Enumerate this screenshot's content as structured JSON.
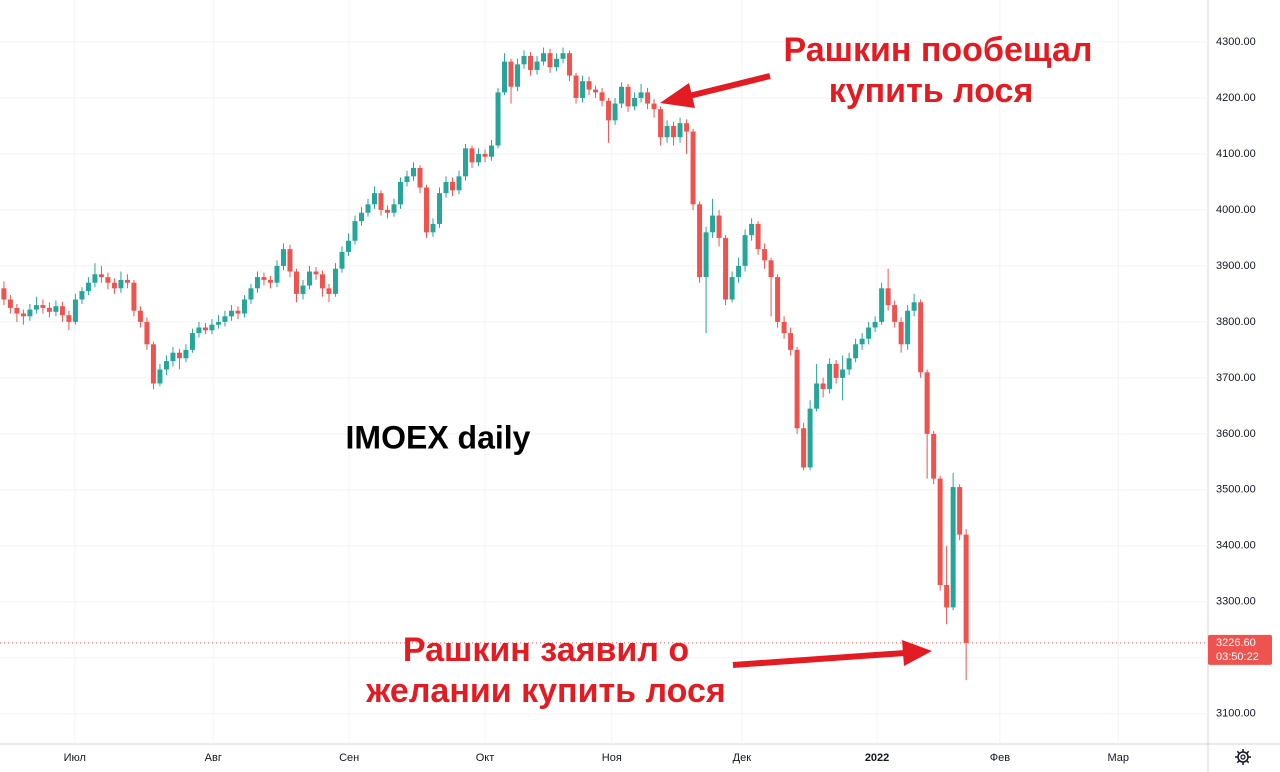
{
  "chart_data": {
    "type": "candlestick",
    "watermark": "IMOEX daily",
    "up_color": "#26a69a",
    "down_color": "#ef5350",
    "xlim": [
      -0.6,
      185.2
    ],
    "xticks": [
      {
        "value": 10.9,
        "label": "Июл"
      },
      {
        "value": 32.2,
        "label": "Авг"
      },
      {
        "value": 53.1,
        "label": "Сен"
      },
      {
        "value": 74,
        "label": "Окт"
      },
      {
        "value": 93.5,
        "label": "Ноя"
      },
      {
        "value": 113.5,
        "label": "Дек"
      },
      {
        "value": 134.3,
        "label": "2022"
      },
      {
        "value": 153.2,
        "label": "Фев"
      },
      {
        "value": 171.4,
        "label": "Мар"
      }
    ],
    "ylim": [
      3046,
      4375
    ],
    "yticks": [
      {
        "value": 3100,
        "label": "3100.00"
      },
      {
        "value": 3200,
        "label": "3200.00"
      },
      {
        "value": 3300,
        "label": "3300.00"
      },
      {
        "value": 3400,
        "label": "3400.00"
      },
      {
        "value": 3500,
        "label": "3500.00"
      },
      {
        "value": 3600,
        "label": "3600.00"
      },
      {
        "value": 3700,
        "label": "3700.00"
      },
      {
        "value": 3800,
        "label": "3800.00"
      },
      {
        "value": 3900,
        "label": "3900.00"
      },
      {
        "value": 4000,
        "label": "4000.00"
      },
      {
        "value": 4100,
        "label": "4100.00"
      },
      {
        "value": 4200,
        "label": "4200.00"
      },
      {
        "value": 4300,
        "label": "4300.00"
      }
    ],
    "grid": true,
    "open": [
      3860,
      3840,
      3825,
      3815,
      3810,
      3822,
      3830,
      3825,
      3818,
      3828,
      3812,
      3800,
      3840,
      3855,
      3870,
      3885,
      3880,
      3870,
      3860,
      3875,
      3870,
      3820,
      3800,
      3760,
      3690,
      3715,
      3730,
      3745,
      3735,
      3750,
      3780,
      3790,
      3785,
      3795,
      3800,
      3810,
      3820,
      3815,
      3840,
      3860,
      3880,
      3875,
      3870,
      3900,
      3930,
      3890,
      3850,
      3865,
      3890,
      3885,
      3860,
      3850,
      3895,
      3925,
      3945,
      3980,
      3995,
      4010,
      4030,
      4000,
      3995,
      4010,
      4050,
      4060,
      4075,
      4040,
      3960,
      3975,
      4030,
      4050,
      4035,
      4060,
      4110,
      4085,
      4100,
      4095,
      4115,
      4210,
      4265,
      4220,
      4260,
      4275,
      4250,
      4265,
      4280,
      4255,
      4270,
      4280,
      4240,
      4200,
      4230,
      4215,
      4210,
      4195,
      4160,
      4190,
      4220,
      4185,
      4200,
      4210,
      4190,
      4180,
      4130,
      4150,
      4130,
      4155,
      4140,
      4010,
      3880,
      3960,
      3990,
      3950,
      3840,
      3880,
      3900,
      3955,
      3975,
      3930,
      3910,
      3880,
      3800,
      3780,
      3750,
      3610,
      3540,
      3645,
      3690,
      3680,
      3725,
      3700,
      3715,
      3735,
      3760,
      3770,
      3790,
      3800,
      3860,
      3830,
      3800,
      3760,
      3820,
      3835,
      3710,
      3600,
      3520,
      3330,
      3290,
      3505,
      3420
    ],
    "high": [
      3872,
      3848,
      3832,
      3822,
      3832,
      3845,
      3840,
      3835,
      3838,
      3836,
      3820,
      3850,
      3862,
      3880,
      3905,
      3900,
      3888,
      3878,
      3890,
      3885,
      3875,
      3828,
      3808,
      3765,
      3725,
      3740,
      3755,
      3752,
      3760,
      3788,
      3800,
      3798,
      3805,
      3812,
      3820,
      3830,
      3828,
      3848,
      3868,
      3890,
      3888,
      3882,
      3910,
      3940,
      3938,
      3895,
      3875,
      3900,
      3898,
      3892,
      3868,
      3905,
      3935,
      3958,
      3990,
      4005,
      4020,
      4042,
      4035,
      4008,
      4020,
      4058,
      4070,
      4085,
      4080,
      4045,
      3985,
      4040,
      4060,
      4058,
      4070,
      4118,
      4115,
      4110,
      4108,
      4125,
      4218,
      4280,
      4270,
      4270,
      4285,
      4282,
      4275,
      4290,
      4288,
      4280,
      4290,
      4285,
      4245,
      4240,
      4238,
      4222,
      4218,
      4200,
      4200,
      4228,
      4225,
      4210,
      4225,
      4218,
      4198,
      4185,
      4160,
      4158,
      4165,
      4162,
      4145,
      4015,
      3970,
      4020,
      4000,
      3955,
      3890,
      3915,
      3965,
      3985,
      3980,
      3940,
      3915,
      3885,
      3810,
      3790,
      3755,
      3620,
      3660,
      3725,
      3700,
      3735,
      3732,
      3740,
      3745,
      3770,
      3780,
      3800,
      3810,
      3870,
      3895,
      3838,
      3808,
      3830,
      3850,
      3840,
      3715,
      3605,
      3525,
      3400,
      3530,
      3510,
      3430
    ],
    "low": [
      3830,
      3815,
      3800,
      3795,
      3802,
      3815,
      3815,
      3808,
      3810,
      3800,
      3785,
      3795,
      3832,
      3848,
      3862,
      3870,
      3858,
      3850,
      3852,
      3860,
      3810,
      3790,
      3750,
      3680,
      3685,
      3705,
      3720,
      3715,
      3728,
      3745,
      3772,
      3778,
      3778,
      3788,
      3792,
      3802,
      3805,
      3808,
      3832,
      3852,
      3865,
      3860,
      3862,
      3892,
      3880,
      3835,
      3840,
      3858,
      3875,
      3845,
      3835,
      3845,
      3888,
      3918,
      3938,
      3972,
      3988,
      4002,
      3990,
      3985,
      3988,
      4002,
      4042,
      4052,
      4030,
      3950,
      3952,
      3968,
      4022,
      4025,
      4028,
      4052,
      4075,
      4078,
      4085,
      4088,
      4110,
      4205,
      4190,
      4212,
      4252,
      4240,
      4242,
      4258,
      4245,
      4248,
      4262,
      4230,
      4190,
      4192,
      4205,
      4200,
      4185,
      4120,
      4152,
      4182,
      4175,
      4178,
      4192,
      4180,
      4165,
      4115,
      4120,
      4115,
      4120,
      4100,
      4000,
      3870,
      3780,
      3950,
      3935,
      3830,
      3835,
      3870,
      3890,
      3945,
      3920,
      3895,
      3810,
      3790,
      3770,
      3740,
      3600,
      3535,
      3535,
      3640,
      3665,
      3672,
      3690,
      3660,
      3705,
      3728,
      3750,
      3760,
      3782,
      3795,
      3820,
      3790,
      3745,
      3750,
      3810,
      3700,
      3520,
      3510,
      3320,
      3260,
      3285,
      3410,
      3160
    ],
    "close": [
      3840,
      3825,
      3815,
      3810,
      3822,
      3830,
      3825,
      3818,
      3828,
      3812,
      3800,
      3840,
      3855,
      3870,
      3885,
      3880,
      3870,
      3860,
      3875,
      3870,
      3820,
      3800,
      3760,
      3690,
      3715,
      3730,
      3745,
      3735,
      3750,
      3780,
      3790,
      3785,
      3795,
      3800,
      3810,
      3820,
      3815,
      3840,
      3860,
      3880,
      3875,
      3870,
      3900,
      3930,
      3890,
      3850,
      3865,
      3890,
      3885,
      3860,
      3850,
      3895,
      3925,
      3945,
      3980,
      3995,
      4010,
      4030,
      4000,
      3995,
      4010,
      4050,
      4060,
      4075,
      4040,
      3960,
      3975,
      4030,
      4050,
      4035,
      4060,
      4110,
      4085,
      4100,
      4095,
      4115,
      4210,
      4265,
      4220,
      4260,
      4275,
      4250,
      4265,
      4280,
      4255,
      4270,
      4280,
      4240,
      4200,
      4230,
      4215,
      4210,
      4195,
      4160,
      4190,
      4220,
      4185,
      4200,
      4210,
      4190,
      4180,
      4130,
      4150,
      4130,
      4155,
      4140,
      4010,
      3880,
      3960,
      3990,
      3950,
      3840,
      3880,
      3900,
      3955,
      3975,
      3930,
      3910,
      3880,
      3800,
      3780,
      3750,
      3610,
      3540,
      3645,
      3690,
      3680,
      3725,
      3700,
      3715,
      3735,
      3760,
      3770,
      3790,
      3800,
      3860,
      3830,
      3800,
      3760,
      3820,
      3835,
      3710,
      3600,
      3520,
      3330,
      3290,
      3505,
      3420,
      3226.6
    ],
    "last_price": {
      "value": 3226.6,
      "label": "3226.60"
    },
    "countdown": "03:50:22",
    "annotations": [
      {
        "lines": [
          "Рашкин пообещал",
          "купить лося"
        ]
      },
      {
        "lines": [
          "Рашкин заявил о",
          "желании купить лося"
        ]
      }
    ]
  }
}
